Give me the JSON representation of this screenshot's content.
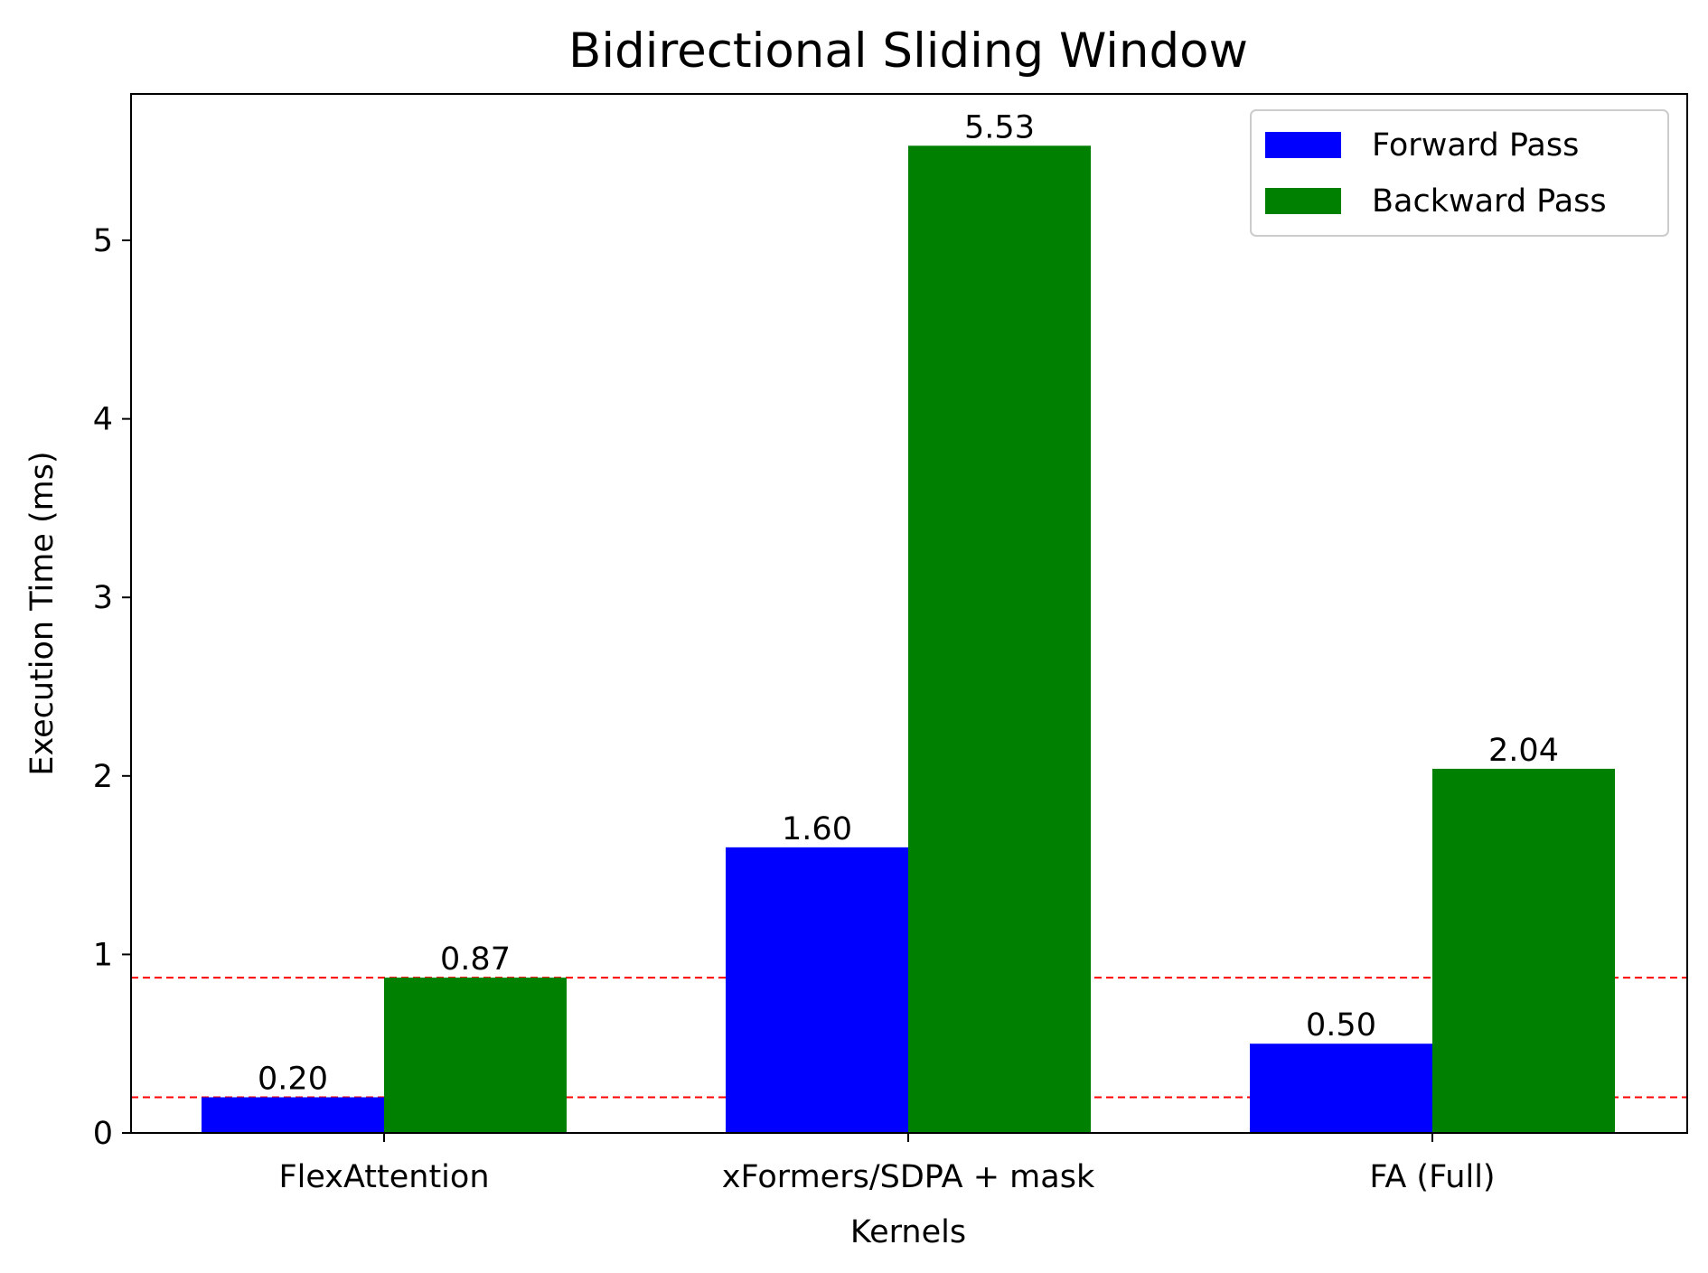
{
  "chart_data": {
    "type": "bar",
    "title": "Bidirectional Sliding Window",
    "xlabel": "Kernels",
    "ylabel": "Execution Time (ms)",
    "categories": [
      "FlexAttention",
      "xFormers/SDPA + mask",
      "FA (Full)"
    ],
    "series": [
      {
        "name": "Forward Pass",
        "color": "#0000ff",
        "values": [
          0.2,
          1.6,
          0.5
        ]
      },
      {
        "name": "Backward Pass",
        "color": "#008000",
        "values": [
          0.87,
          5.53,
          2.04
        ]
      }
    ],
    "data_labels": [
      [
        "0.20",
        "1.60",
        "0.50"
      ],
      [
        "0.87",
        "5.53",
        "2.04"
      ]
    ],
    "ylim": [
      0,
      5.82
    ],
    "yticks": [
      0,
      1,
      2,
      3,
      4,
      5
    ],
    "reference_lines": [
      {
        "value": 0.2,
        "color": "#ff0000",
        "style": "dashed"
      },
      {
        "value": 0.87,
        "color": "#ff0000",
        "style": "dashed"
      }
    ],
    "legend": {
      "position": "top-right",
      "entries": [
        "Forward Pass",
        "Backward Pass"
      ]
    },
    "grid": false
  }
}
